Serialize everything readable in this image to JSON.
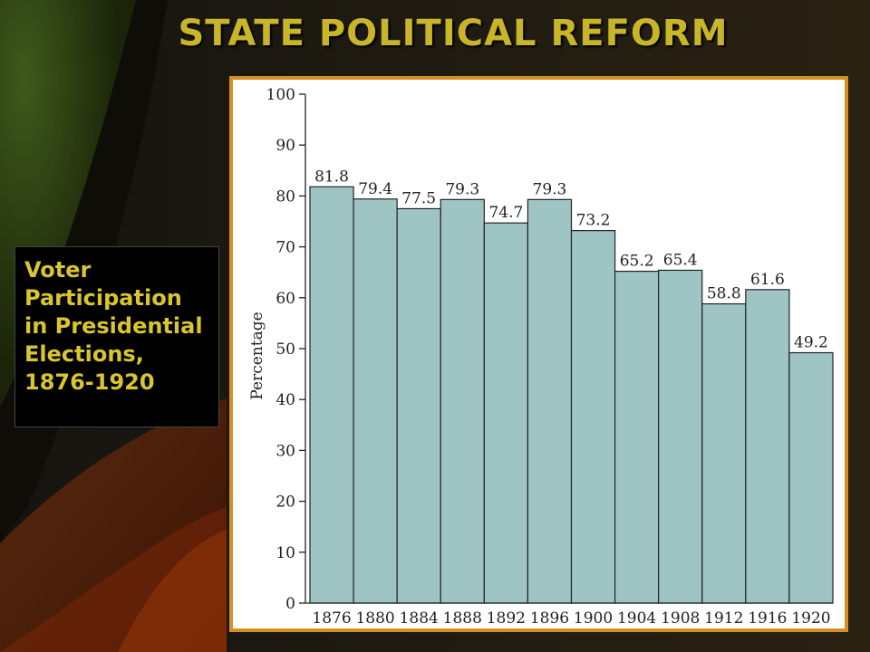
{
  "slide": {
    "title": "STATE POLITICAL REFORM",
    "caption_lines": [
      "Voter",
      "Participation",
      "in Presidential",
      "Elections,",
      "1876-1920"
    ]
  },
  "colors": {
    "title": "#c9b52a",
    "caption_text": "#d9c62e",
    "frame_border": "#d68f23",
    "bar_fill": "#9fc4c4",
    "bar_stroke": "#222222"
  },
  "chart_data": {
    "type": "bar",
    "title": "",
    "xlabel": "",
    "ylabel": "Percentage",
    "ylim": [
      0,
      100
    ],
    "yticks": [
      0,
      10,
      20,
      30,
      40,
      50,
      60,
      70,
      80,
      90,
      100
    ],
    "categories": [
      "1876",
      "1880",
      "1884",
      "1888",
      "1892",
      "1896",
      "1900",
      "1904",
      "1908",
      "1912",
      "1916",
      "1920"
    ],
    "values": [
      81.8,
      79.4,
      77.5,
      79.3,
      74.7,
      79.3,
      73.2,
      65.2,
      65.4,
      58.8,
      61.6,
      49.2
    ],
    "value_labels": [
      "81.8",
      "79.4",
      "77.5",
      "79.3",
      "74.7",
      "79.3",
      "73.2",
      "65.2",
      "65.4",
      "58.8",
      "61.6",
      "49.2"
    ],
    "grid": false,
    "legend": "none"
  }
}
